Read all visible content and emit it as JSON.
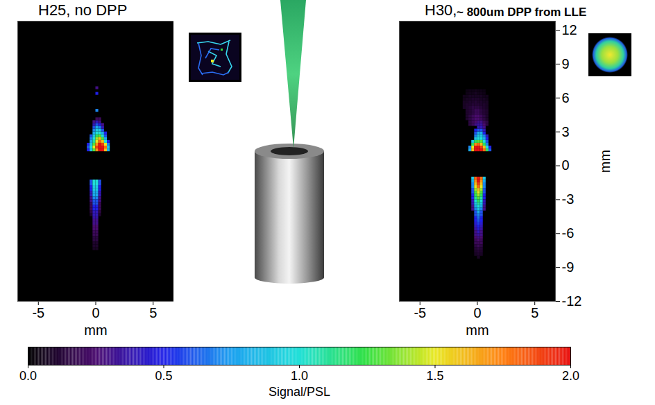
{
  "chart_data": [
    {
      "type": "heatmap",
      "title": "H25, no DPP",
      "xlabel": "mm",
      "xlim": [
        -6.8,
        6.8
      ],
      "xticks": [
        -5,
        0,
        5
      ],
      "ylim": [
        -12,
        12.8
      ],
      "tick_labels": "x",
      "cell_size": 0.25,
      "cells": [
        {
          "y": 1.25,
          "x0": -0.75,
          "signal": [
            0.5,
            0.9,
            1.3,
            1.7,
            2.0,
            2.0,
            1.6,
            0.8
          ]
        },
        {
          "y": 1.5,
          "x0": -0.75,
          "signal": [
            0.6,
            1.0,
            1.5,
            1.9,
            2.0,
            2.0,
            1.8,
            0.9
          ]
        },
        {
          "y": 1.75,
          "x0": -0.75,
          "signal": [
            0.5,
            0.9,
            1.3,
            1.7,
            2.0,
            1.9,
            1.5,
            0.7
          ]
        },
        {
          "y": 2.0,
          "x0": -0.5,
          "signal": [
            0.8,
            1.1,
            1.5,
            1.8,
            1.6,
            1.0,
            0.5
          ]
        },
        {
          "y": 2.25,
          "x0": -0.5,
          "signal": [
            0.7,
            1.0,
            1.4,
            1.6,
            1.3,
            0.8
          ]
        },
        {
          "y": 2.5,
          "x0": -0.5,
          "signal": [
            0.6,
            0.9,
            1.2,
            1.3,
            1.0,
            0.6
          ]
        },
        {
          "y": 2.75,
          "x0": -0.25,
          "signal": [
            0.8,
            1.0,
            1.0,
            0.8,
            0.5
          ]
        },
        {
          "y": 3.0,
          "x0": -0.25,
          "signal": [
            0.7,
            0.9,
            0.9,
            0.6
          ]
        },
        {
          "y": 3.25,
          "x0": -0.25,
          "signal": [
            0.6,
            0.8,
            0.7,
            0.4
          ]
        },
        {
          "y": 3.5,
          "x0": -0.25,
          "signal": [
            0.4,
            0.6,
            0.5,
            0.3
          ]
        },
        {
          "y": 3.75,
          "x0": -0.25,
          "signal": [
            0.3,
            0.4,
            0.3
          ]
        },
        {
          "y": 4.0,
          "x0": 0,
          "signal": [
            0.2,
            0.2
          ]
        },
        {
          "y": 4.75,
          "x0": 0,
          "signal": [
            0.7
          ]
        },
        {
          "y": 6.25,
          "x0": 0,
          "signal": [
            0.5
          ]
        },
        {
          "y": 6.75,
          "x0": 0,
          "signal": [
            0.3
          ]
        },
        {
          "y": -1.5,
          "x0": -0.5,
          "signal": [
            0.6,
            1.0,
            1.0,
            0.6
          ]
        },
        {
          "y": -1.75,
          "x0": -0.5,
          "signal": [
            0.6,
            1.0,
            1.0,
            0.6
          ]
        },
        {
          "y": -2.0,
          "x0": -0.5,
          "signal": [
            0.5,
            0.9,
            0.9,
            0.5
          ]
        },
        {
          "y": -2.25,
          "x0": -0.5,
          "signal": [
            0.5,
            0.9,
            0.9,
            0.5
          ]
        },
        {
          "y": -2.5,
          "x0": -0.5,
          "signal": [
            0.4,
            0.8,
            0.8,
            0.4
          ]
        },
        {
          "y": -2.75,
          "x0": -0.5,
          "signal": [
            0.4,
            0.8,
            0.8,
            0.4
          ]
        },
        {
          "y": -3.0,
          "x0": -0.5,
          "signal": [
            0.3,
            0.7,
            0.7,
            0.3
          ]
        },
        {
          "y": -3.25,
          "x0": -0.5,
          "signal": [
            0.3,
            0.6,
            0.6,
            0.3
          ]
        },
        {
          "y": -3.5,
          "x0": -0.5,
          "signal": [
            0.2,
            0.6,
            0.6,
            0.2
          ]
        },
        {
          "y": -3.75,
          "x0": -0.5,
          "signal": [
            0.2,
            0.5,
            0.5,
            0.2
          ]
        },
        {
          "y": -4.0,
          "x0": -0.5,
          "signal": [
            0.2,
            0.5,
            0.5,
            0.2
          ]
        },
        {
          "y": -4.25,
          "x0": -0.5,
          "signal": [
            0.15,
            0.4,
            0.4,
            0.15
          ]
        },
        {
          "y": -4.5,
          "x0": -0.5,
          "signal": [
            0.1,
            0.4,
            0.4,
            0.1
          ]
        },
        {
          "y": -4.75,
          "x0": -0.25,
          "signal": [
            0.35,
            0.35
          ]
        },
        {
          "y": -5.0,
          "x0": -0.25,
          "signal": [
            0.3,
            0.3
          ]
        },
        {
          "y": -5.25,
          "x0": -0.25,
          "signal": [
            0.3,
            0.3
          ]
        },
        {
          "y": -5.5,
          "x0": -0.25,
          "signal": [
            0.25,
            0.25
          ]
        },
        {
          "y": -5.75,
          "x0": -0.25,
          "signal": [
            0.25,
            0.25
          ]
        },
        {
          "y": -6.0,
          "x0": -0.25,
          "signal": [
            0.2,
            0.2
          ]
        },
        {
          "y": -6.25,
          "x0": -0.25,
          "signal": [
            0.2,
            0.2
          ]
        },
        {
          "y": -6.5,
          "x0": -0.25,
          "signal": [
            0.15,
            0.15
          ]
        },
        {
          "y": -6.75,
          "x0": -0.25,
          "signal": [
            0.15,
            0.15
          ]
        },
        {
          "y": -7.0,
          "x0": -0.25,
          "signal": [
            0.1,
            0.1
          ]
        },
        {
          "y": -7.25,
          "x0": -0.25,
          "signal": [
            0.1,
            0.1
          ]
        },
        {
          "y": -7.5,
          "x0": -0.25,
          "signal": [
            0.08,
            0.08
          ]
        }
      ]
    },
    {
      "type": "heatmap",
      "title": "H30,",
      "annotation": "~ 800um DPP from LLE",
      "xlabel": "mm",
      "ylabel": "mm",
      "xlim": [
        -6.8,
        6.8
      ],
      "xticks": [
        -5,
        0,
        5
      ],
      "ylim": [
        -12,
        12.8
      ],
      "yticks": [
        -12,
        -9,
        -6,
        -3,
        0,
        3,
        6,
        9,
        12
      ],
      "cell_size": 0.25,
      "cells": [
        {
          "y": 1.25,
          "x0": -0.75,
          "signal": [
            0.8,
            1.6,
            2.0,
            2.0,
            2.0,
            1.8,
            1.2,
            0.6
          ]
        },
        {
          "y": 1.5,
          "x0": -0.75,
          "signal": [
            0.7,
            1.5,
            2.0,
            2.0,
            1.9,
            1.6,
            1.0,
            0.5
          ]
        },
        {
          "y": 1.75,
          "x0": -0.5,
          "signal": [
            1.2,
            1.7,
            1.8,
            1.6,
            1.2,
            0.7
          ]
        },
        {
          "y": 2.0,
          "x0": -0.5,
          "signal": [
            0.9,
            1.2,
            1.3,
            1.3,
            1.0,
            0.6
          ]
        },
        {
          "y": 2.25,
          "x0": -0.25,
          "signal": [
            0.9,
            1.0,
            1.0,
            0.8,
            0.5
          ]
        },
        {
          "y": 2.5,
          "x0": -0.25,
          "signal": [
            0.7,
            0.9,
            0.9,
            0.7,
            0.4
          ]
        },
        {
          "y": 2.75,
          "x0": -0.25,
          "signal": [
            0.6,
            0.8,
            0.8,
            0.5
          ]
        },
        {
          "y": 3.0,
          "x0": -0.25,
          "signal": [
            0.5,
            0.6,
            0.6,
            0.4
          ]
        },
        {
          "y": 3.25,
          "x0": 0,
          "signal": [
            0.4,
            0.4,
            0.3
          ]
        },
        {
          "y": 3.5,
          "x0": -0.75,
          "signal": [
            0.15,
            0.2,
            0.3,
            0.35,
            0.35,
            0.25,
            0.15
          ]
        },
        {
          "y": 3.75,
          "x0": -0.75,
          "signal": [
            0.15,
            0.2,
            0.25,
            0.3,
            0.3,
            0.2,
            0.15
          ]
        },
        {
          "y": 4.0,
          "x0": -1.0,
          "signal": [
            0.1,
            0.15,
            0.2,
            0.25,
            0.25,
            0.2,
            0.15,
            0.1
          ]
        },
        {
          "y": 4.25,
          "x0": -1.0,
          "signal": [
            0.1,
            0.15,
            0.2,
            0.25,
            0.25,
            0.2,
            0.15,
            0.1
          ]
        },
        {
          "y": 4.5,
          "x0": -1.0,
          "signal": [
            0.1,
            0.12,
            0.15,
            0.2,
            0.2,
            0.15,
            0.12,
            0.1
          ]
        },
        {
          "y": 4.75,
          "x0": -1.0,
          "signal": [
            0.1,
            0.12,
            0.15,
            0.2,
            0.2,
            0.15,
            0.12,
            0.1
          ]
        },
        {
          "y": 5.0,
          "x0": -1.25,
          "signal": [
            0.08,
            0.1,
            0.12,
            0.15,
            0.15,
            0.15,
            0.12,
            0.1,
            0.08
          ]
        },
        {
          "y": 5.25,
          "x0": -1.25,
          "signal": [
            0.08,
            0.1,
            0.1,
            0.12,
            0.12,
            0.12,
            0.1,
            0.1,
            0.08
          ]
        },
        {
          "y": 5.5,
          "x0": -1.25,
          "signal": [
            0.08,
            0.08,
            0.1,
            0.1,
            0.12,
            0.1,
            0.1,
            0.08,
            0.08
          ]
        },
        {
          "y": 5.75,
          "x0": -1.25,
          "signal": [
            0.06,
            0.08,
            0.08,
            0.1,
            0.1,
            0.1,
            0.08,
            0.08,
            0.06
          ]
        },
        {
          "y": 6.0,
          "x0": -1.25,
          "signal": [
            0.06,
            0.06,
            0.08,
            0.08,
            0.08,
            0.08,
            0.08,
            0.06,
            0.06
          ]
        },
        {
          "y": 6.25,
          "x0": -1.0,
          "signal": [
            0.05,
            0.06,
            0.06,
            0.08,
            0.06,
            0.06,
            0.05
          ]
        },
        {
          "y": 6.5,
          "x0": -1.0,
          "signal": [
            0.04,
            0.05,
            0.05,
            0.06,
            0.05,
            0.05,
            0.04
          ]
        },
        {
          "y": -1.25,
          "x0": -0.5,
          "signal": [
            0.9,
            1.8,
            2.0,
            1.8,
            0.9
          ]
        },
        {
          "y": -1.5,
          "x0": -0.5,
          "signal": [
            0.8,
            1.7,
            2.0,
            1.7,
            0.8
          ]
        },
        {
          "y": -1.75,
          "x0": -0.5,
          "signal": [
            0.7,
            1.6,
            1.9,
            1.6,
            0.7
          ]
        },
        {
          "y": -2.0,
          "x0": -0.5,
          "signal": [
            0.7,
            1.5,
            1.8,
            1.5,
            0.7
          ]
        },
        {
          "y": -2.25,
          "x0": -0.5,
          "signal": [
            0.6,
            1.4,
            1.6,
            1.4,
            0.6
          ]
        },
        {
          "y": -2.5,
          "x0": -0.5,
          "signal": [
            0.6,
            1.3,
            1.5,
            1.3,
            0.6
          ]
        },
        {
          "y": -2.75,
          "x0": -0.5,
          "signal": [
            0.5,
            1.2,
            1.4,
            1.2,
            0.5
          ]
        },
        {
          "y": -3.0,
          "x0": -0.5,
          "signal": [
            0.5,
            1.1,
            1.3,
            1.1,
            0.5
          ]
        },
        {
          "y": -3.25,
          "x0": -0.5,
          "signal": [
            0.4,
            1.0,
            1.2,
            1.0,
            0.4
          ]
        },
        {
          "y": -3.5,
          "x0": -0.5,
          "signal": [
            0.4,
            0.9,
            1.1,
            0.9,
            0.4
          ]
        },
        {
          "y": -3.75,
          "x0": -0.5,
          "signal": [
            0.3,
            0.8,
            1.0,
            0.8,
            0.3
          ]
        },
        {
          "y": -4.0,
          "x0": -0.5,
          "signal": [
            0.3,
            0.7,
            0.9,
            0.7,
            0.3
          ]
        },
        {
          "y": -4.25,
          "x0": -0.25,
          "signal": [
            0.6,
            0.8,
            0.6
          ]
        },
        {
          "y": -4.5,
          "x0": -0.25,
          "signal": [
            0.6,
            0.7,
            0.6
          ]
        },
        {
          "y": -4.75,
          "x0": -0.25,
          "signal": [
            0.5,
            0.65,
            0.5
          ]
        },
        {
          "y": -5.0,
          "x0": -0.25,
          "signal": [
            0.5,
            0.6,
            0.5
          ]
        },
        {
          "y": -5.25,
          "x0": -0.25,
          "signal": [
            0.45,
            0.55,
            0.45
          ]
        },
        {
          "y": -5.5,
          "x0": -0.25,
          "signal": [
            0.4,
            0.5,
            0.4
          ]
        },
        {
          "y": -5.75,
          "x0": -0.25,
          "signal": [
            0.35,
            0.45,
            0.35
          ]
        },
        {
          "y": -6.0,
          "x0": -0.25,
          "signal": [
            0.3,
            0.4,
            0.3
          ]
        },
        {
          "y": -6.25,
          "x0": -0.25,
          "signal": [
            0.3,
            0.35,
            0.3
          ]
        },
        {
          "y": -6.5,
          "x0": -0.25,
          "signal": [
            0.25,
            0.3,
            0.25
          ]
        },
        {
          "y": -6.75,
          "x0": -0.25,
          "signal": [
            0.2,
            0.25,
            0.2
          ]
        },
        {
          "y": -7.0,
          "x0": -0.25,
          "signal": [
            0.2,
            0.2,
            0.2
          ]
        },
        {
          "y": -7.25,
          "x0": -0.25,
          "signal": [
            0.15,
            0.2,
            0.15
          ]
        },
        {
          "y": -7.5,
          "x0": -0.25,
          "signal": [
            0.12,
            0.15,
            0.12
          ]
        },
        {
          "y": -7.75,
          "x0": -0.25,
          "signal": [
            0.1,
            0.12,
            0.1
          ]
        },
        {
          "y": -8.0,
          "x0": -0.25,
          "signal": [
            0.08,
            0.1,
            0.08
          ]
        },
        {
          "y": -8.25,
          "x0": 0,
          "signal": [
            0.08
          ]
        }
      ]
    }
  ],
  "colorbar": {
    "label": "Signal/PSL",
    "range": [
      0,
      2
    ],
    "ticks": [
      {
        "value": 0,
        "label": "0.0"
      },
      {
        "value": 0.5,
        "label": "0.5"
      },
      {
        "value": 1,
        "label": "1.0"
      },
      {
        "value": 1.5,
        "label": "1.5"
      },
      {
        "value": 2,
        "label": "2.0"
      }
    ]
  }
}
